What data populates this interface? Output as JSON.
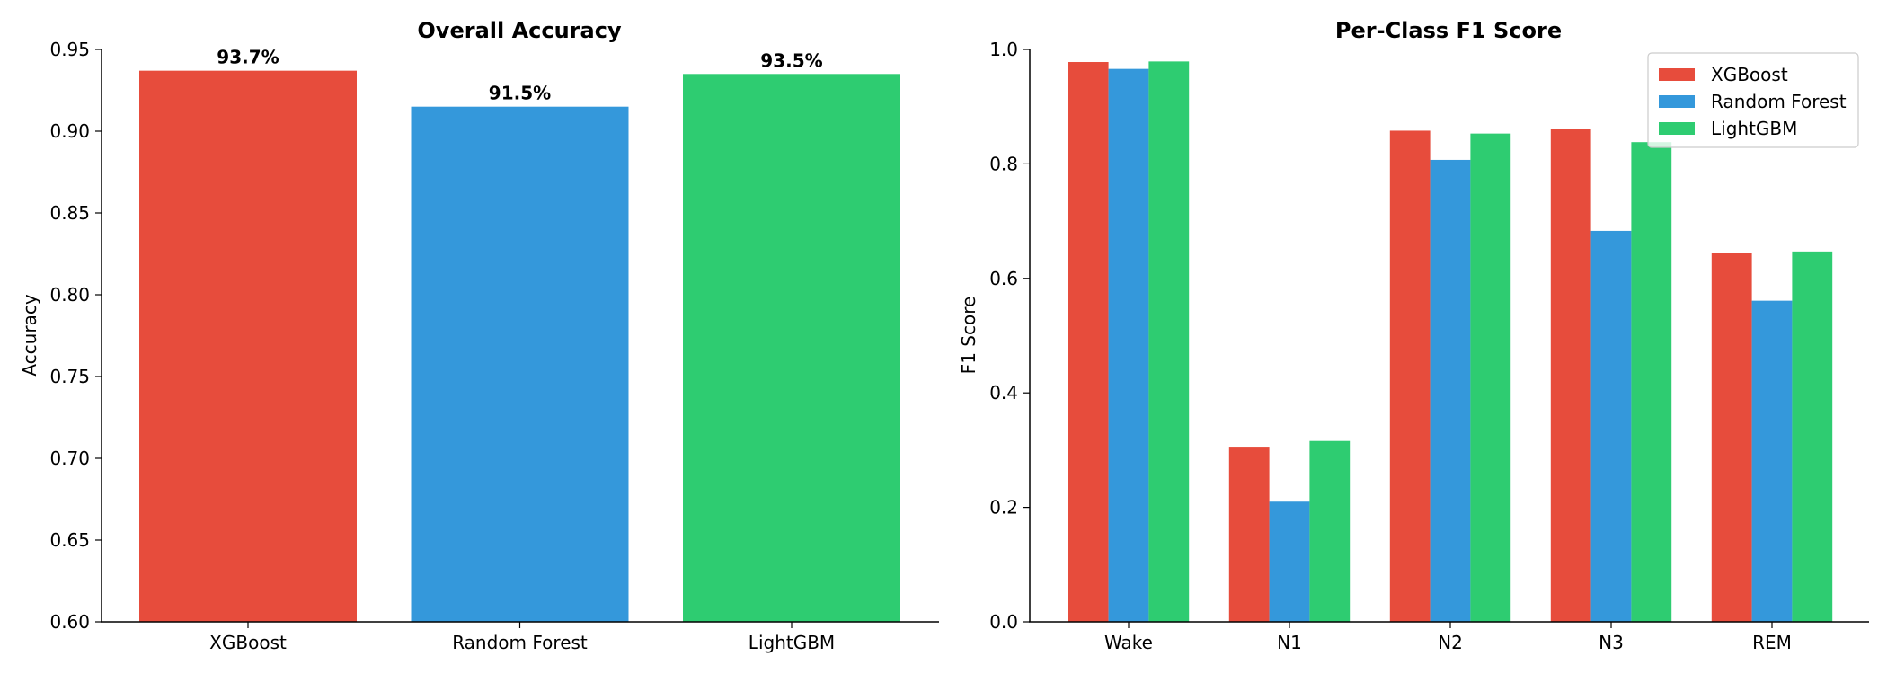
{
  "chart_data": [
    {
      "type": "bar",
      "title": "Overall Accuracy",
      "xlabel": "",
      "ylabel": "Accuracy",
      "ylim": [
        0.6,
        0.95
      ],
      "yticks": [
        0.6,
        0.65,
        0.7,
        0.75,
        0.8,
        0.85,
        0.9,
        0.95
      ],
      "ytick_labels": [
        "0.60",
        "0.65",
        "0.70",
        "0.75",
        "0.80",
        "0.85",
        "0.90",
        "0.95"
      ],
      "categories": [
        "XGBoost",
        "Random Forest",
        "LightGBM"
      ],
      "values": [
        0.937,
        0.915,
        0.935
      ],
      "value_labels": [
        "93.7%",
        "91.5%",
        "93.5%"
      ],
      "colors": [
        "#e74c3c",
        "#3498db",
        "#2ecc71"
      ]
    },
    {
      "type": "bar",
      "title": "Per-Class F1 Score",
      "xlabel": "",
      "ylabel": "F1 Score",
      "ylim": [
        0,
        1.0
      ],
      "yticks": [
        0,
        0.2,
        0.4,
        0.6,
        0.8,
        1.0
      ],
      "ytick_labels": [
        "0.0",
        "0.2",
        "0.4",
        "0.6",
        "0.8",
        "1.0"
      ],
      "categories": [
        "Wake",
        "N1",
        "N2",
        "N3",
        "REM"
      ],
      "series": [
        {
          "name": "XGBoost",
          "color": "#e74c3c",
          "values": [
            0.978,
            0.306,
            0.858,
            0.861,
            0.644
          ]
        },
        {
          "name": "Random Forest",
          "color": "#3498db",
          "values": [
            0.966,
            0.21,
            0.807,
            0.683,
            0.561
          ]
        },
        {
          "name": "LightGBM",
          "color": "#2ecc71",
          "values": [
            0.979,
            0.316,
            0.853,
            0.838,
            0.647
          ]
        }
      ],
      "legend_position": "top-right"
    }
  ]
}
